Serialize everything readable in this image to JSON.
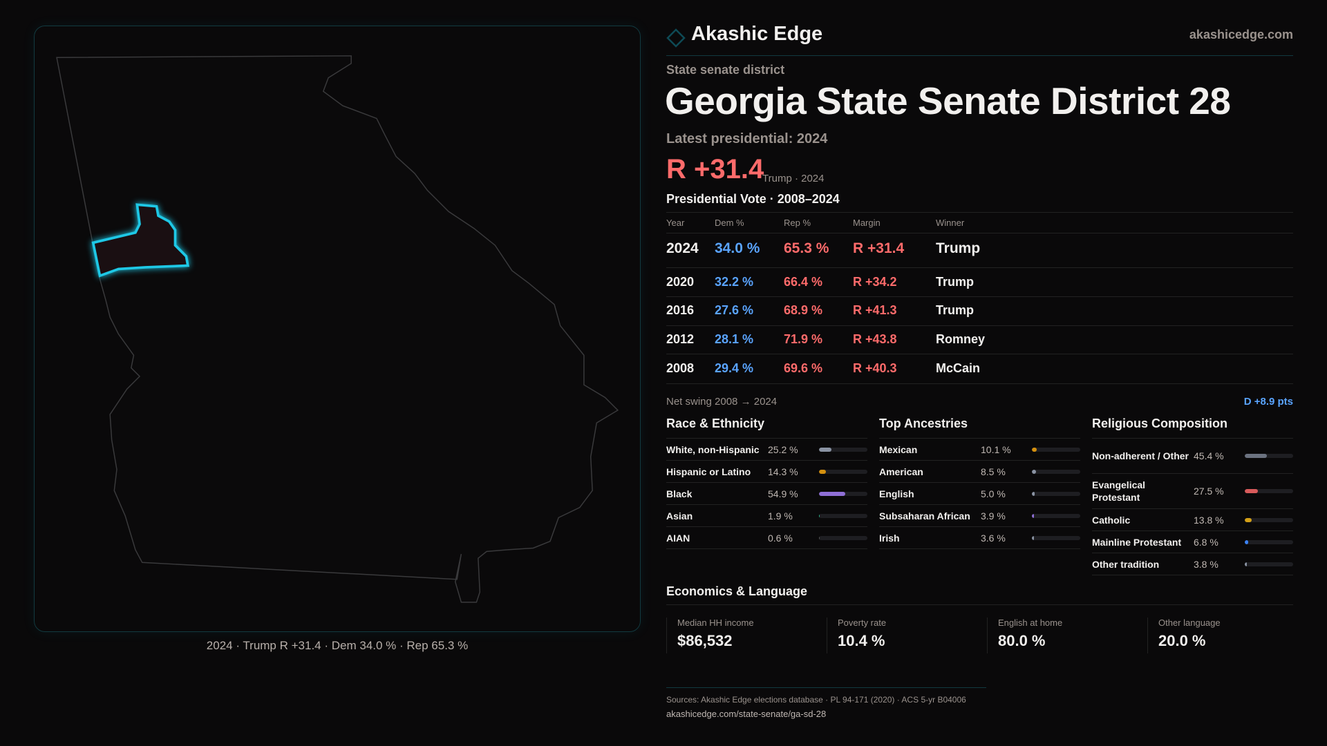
{
  "brand": {
    "name": "Akashic Edge",
    "site": "akashicedge.com"
  },
  "header": {
    "kicker": "State senate district",
    "title": "Georgia State Senate District 28",
    "latest": "Latest presidential: 2024",
    "margin": "R +31.4",
    "margin_note": "Trump · 2024"
  },
  "map": {
    "caption": "2024 · Trump R +31.4 · Dem 34.0 % · Rep 65.3 %",
    "highlight_color": "#1ec8e6"
  },
  "pres": {
    "title": "Presidential Vote · 2008–2024",
    "columns": [
      "Year",
      "Dem %",
      "Rep %",
      "Margin",
      "Winner"
    ],
    "rows": [
      {
        "year": "2024",
        "dem": "34.0 %",
        "rep": "65.3 %",
        "margin": "R +31.4",
        "winner": "Trump"
      },
      {
        "year": "2020",
        "dem": "32.2 %",
        "rep": "66.4 %",
        "margin": "R +34.2",
        "winner": "Trump"
      },
      {
        "year": "2016",
        "dem": "27.6 %",
        "rep": "68.9 %",
        "margin": "R +41.3",
        "winner": "Trump"
      },
      {
        "year": "2012",
        "dem": "28.1 %",
        "rep": "71.9 %",
        "margin": "R +43.8",
        "winner": "Romney"
      },
      {
        "year": "2008",
        "dem": "29.4 %",
        "rep": "69.6 %",
        "margin": "R +40.3",
        "winner": "McCain"
      }
    ],
    "swing_label": "Net swing 2008 → 2024",
    "swing_value": "D +8.9 pts"
  },
  "sections": [
    {
      "title": "Race & Ethnicity",
      "items": [
        {
          "label": "White, non-Hispanic",
          "value": "25.2 %",
          "pct": 25.2,
          "color": "#8a93a3"
        },
        {
          "label": "Hispanic or Latino",
          "value": "14.3 %",
          "pct": 14.3,
          "color": "#d4900f"
        },
        {
          "label": "Black",
          "value": "54.9 %",
          "pct": 54.9,
          "color": "#8f6fd6"
        },
        {
          "label": "Asian",
          "value": "1.9 %",
          "pct": 1.9,
          "color": "#2bb38a"
        },
        {
          "label": "AIAN",
          "value": "0.6 %",
          "pct": 0.6,
          "color": "#555"
        }
      ]
    },
    {
      "title": "Top Ancestries",
      "items": [
        {
          "label": "Mexican",
          "value": "10.1 %",
          "pct": 10.1,
          "color": "#d4900f"
        },
        {
          "label": "American",
          "value": "8.5 %",
          "pct": 8.5,
          "color": "#8a93a3"
        },
        {
          "label": "English",
          "value": "5.0 %",
          "pct": 5.0,
          "color": "#8a93a3"
        },
        {
          "label": "Subsaharan African",
          "value": "3.9 %",
          "pct": 3.9,
          "color": "#8f6fd6"
        },
        {
          "label": "Irish",
          "value": "3.6 %",
          "pct": 3.6,
          "color": "#8a93a3"
        }
      ]
    },
    {
      "title": "Religious Composition",
      "items": [
        {
          "label": "Non-adherent / Other",
          "value": "45.4 %",
          "pct": 45.4,
          "color": "#6b7280"
        },
        {
          "label": "Evangelical Protestant",
          "value": "27.5 %",
          "pct": 27.5,
          "color": "#d95b5b"
        },
        {
          "label": "Catholic",
          "value": "13.8 %",
          "pct": 13.8,
          "color": "#d4a017"
        },
        {
          "label": "Mainline Protestant",
          "value": "6.8 %",
          "pct": 6.8,
          "color": "#3b82f6"
        },
        {
          "label": "Other tradition",
          "value": "3.8 %",
          "pct": 3.8,
          "color": "#8a93a3"
        }
      ]
    }
  ],
  "economics": {
    "title": "Economics & Language",
    "cards": [
      {
        "label": "Median HH income",
        "value": "$86,532"
      },
      {
        "label": "Poverty rate",
        "value": "10.4 %"
      },
      {
        "label": "English at home",
        "value": "80.0 %"
      },
      {
        "label": "Other language",
        "value": "20.0 %"
      }
    ]
  },
  "footer": {
    "sources": "Sources: Akashic Edge elections database · PL 94-171 (2020) · ACS 5-yr B04006",
    "url": "akashicedge.com/state-senate/ga-sd-28"
  }
}
